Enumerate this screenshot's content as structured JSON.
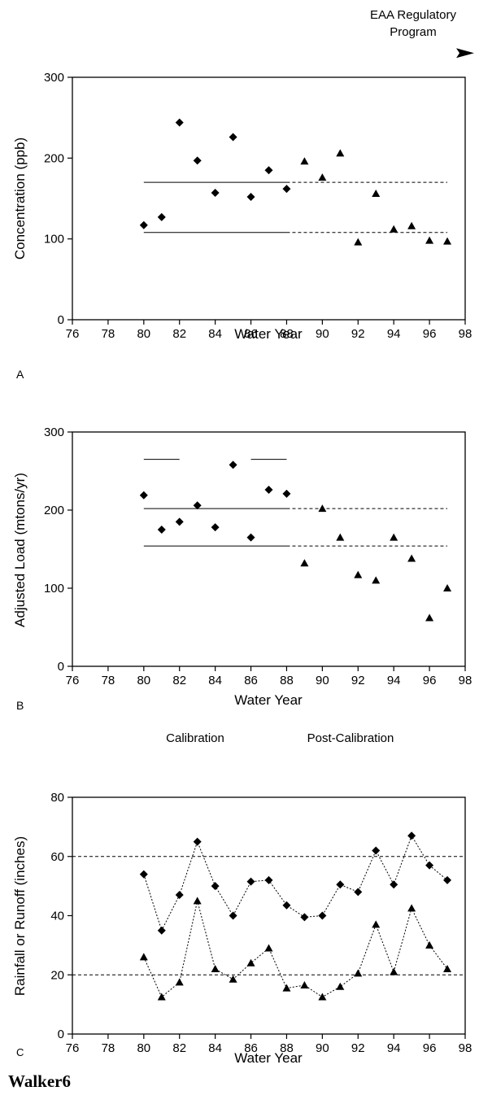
{
  "header": {
    "regulatory_line1": "EAA Regulatory",
    "regulatory_line2": "Program"
  },
  "between_labels": {
    "calibration": "Calibration",
    "post_calibration": "Post-Calibration"
  },
  "footer": {
    "caption": "Walker6"
  },
  "chart_data": [
    {
      "type": "scatter",
      "panel_label": "A",
      "xlabel": "Water Year",
      "ylabel": "Concentration (ppb)",
      "xlim": [
        76,
        98
      ],
      "ylim": [
        0,
        300
      ],
      "xticks": [
        76,
        78,
        80,
        82,
        84,
        86,
        88,
        90,
        92,
        94,
        96,
        98
      ],
      "yticks": [
        0,
        100,
        200,
        300
      ],
      "series": [
        {
          "marker": "diamond",
          "x": [
            80,
            81,
            82,
            83,
            84,
            85,
            86,
            87,
            88
          ],
          "y": [
            117,
            127,
            244,
            197,
            157,
            226,
            152,
            185,
            162
          ]
        },
        {
          "marker": "triangle",
          "x": [
            89,
            90,
            91,
            92,
            93,
            94,
            95,
            96,
            97
          ],
          "y": [
            196,
            176,
            206,
            96,
            156,
            112,
            116,
            98,
            97
          ]
        }
      ],
      "reference_lines": [
        {
          "y": 170,
          "solid_x": [
            80,
            88
          ],
          "dashed_x": [
            88,
            97
          ]
        },
        {
          "y": 108,
          "solid_x": [
            80,
            88
          ],
          "dashed_x": [
            88,
            97
          ]
        }
      ],
      "arrow": {
        "x": [
          97.5,
          98.5
        ],
        "y": 330
      }
    },
    {
      "type": "scatter",
      "panel_label": "B",
      "xlabel": "Water Year",
      "ylabel": "Adjusted Load (mtons/yr)",
      "xlim": [
        76,
        98
      ],
      "ylim": [
        0,
        300
      ],
      "xticks": [
        76,
        78,
        80,
        82,
        84,
        86,
        88,
        90,
        92,
        94,
        96,
        98
      ],
      "yticks": [
        0,
        100,
        200,
        300
      ],
      "series": [
        {
          "marker": "diamond",
          "x": [
            80,
            81,
            82,
            83,
            84,
            85,
            86,
            87,
            88
          ],
          "y": [
            219,
            175,
            185,
            206,
            178,
            258,
            165,
            226,
            221
          ]
        },
        {
          "marker": "triangle",
          "x": [
            89,
            90,
            91,
            92,
            93,
            94,
            95,
            96,
            97
          ],
          "y": [
            132,
            202,
            165,
            117,
            110,
            165,
            138,
            62,
            100
          ]
        }
      ],
      "reference_lines": [
        {
          "y": 202,
          "solid_x": [
            80,
            88
          ],
          "dashed_x": [
            88,
            97
          ]
        },
        {
          "y": 154,
          "solid_x": [
            80,
            88
          ],
          "dashed_x": [
            88,
            97
          ]
        },
        {
          "y": 265,
          "solid_x": [
            80,
            82
          ]
        },
        {
          "y": 265,
          "solid_x": [
            86,
            88
          ]
        }
      ]
    },
    {
      "type": "line",
      "panel_label": "C",
      "xlabel": "Water Year",
      "ylabel": "Rainfall or Runoff (inches)",
      "xlim": [
        76,
        98
      ],
      "ylim": [
        0,
        80
      ],
      "xticks": [
        76,
        78,
        80,
        82,
        84,
        86,
        88,
        90,
        92,
        94,
        96,
        98
      ],
      "yticks": [
        0,
        20,
        40,
        60,
        80
      ],
      "series": [
        {
          "marker": "diamond",
          "x": [
            80,
            81,
            82,
            83,
            84,
            85,
            86,
            87,
            88,
            89,
            90,
            91,
            92,
            93,
            94,
            95,
            96,
            97
          ],
          "y": [
            54,
            35,
            47,
            65,
            50,
            40,
            51.5,
            52,
            43.5,
            39.5,
            40,
            50.5,
            48,
            62,
            50.5,
            67,
            57,
            52
          ]
        },
        {
          "marker": "triangle",
          "x": [
            80,
            81,
            82,
            83,
            84,
            85,
            86,
            87,
            88,
            89,
            90,
            91,
            92,
            93,
            94,
            95,
            96,
            97
          ],
          "y": [
            26,
            12.5,
            17.5,
            45,
            22,
            18.5,
            24,
            29,
            15.5,
            16.5,
            12.5,
            16,
            20.5,
            37,
            21,
            42.5,
            30,
            22
          ]
        }
      ],
      "reference_lines": [
        {
          "y": 60,
          "dashed_x": [
            76,
            98
          ]
        },
        {
          "y": 20,
          "dashed_x": [
            76,
            98
          ]
        }
      ]
    }
  ]
}
